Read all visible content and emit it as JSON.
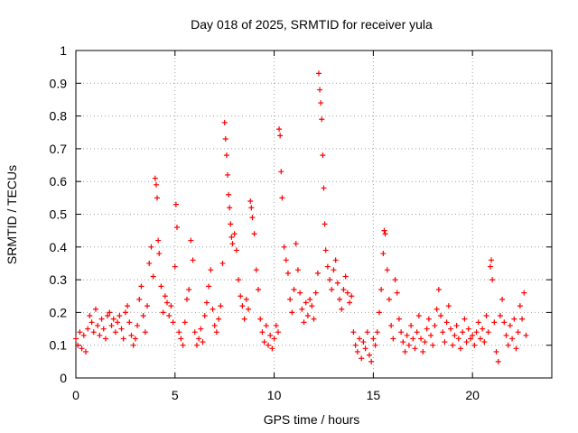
{
  "chart_data": {
    "type": "scatter",
    "title": "Day 018 of 2025, SRMTID for receiver yula",
    "xlabel": "GPS time / hours",
    "ylabel": "SRMTID / TECUs",
    "xlim": [
      0,
      24
    ],
    "ylim": [
      0,
      1
    ],
    "xticks": [
      0,
      5,
      10,
      15,
      20
    ],
    "xtick_labels": [
      "0",
      "5",
      "10",
      "15",
      "20"
    ],
    "yticks": [
      0,
      0.1,
      0.2,
      0.3,
      0.4,
      0.5,
      0.6,
      0.7,
      0.8,
      0.9,
      1
    ],
    "ytick_labels": [
      "0",
      "0.1",
      "0.2",
      "0.3",
      "0.4",
      "0.5",
      "0.6",
      "0.7",
      "0.8",
      "0.9",
      "1"
    ],
    "grid": true,
    "marker": "+",
    "marker_color": "#ff0000",
    "series": [
      {
        "name": "SRMTID",
        "points": [
          [
            0.0,
            0.12
          ],
          [
            0.1,
            0.1
          ],
          [
            0.2,
            0.14
          ],
          [
            0.3,
            0.09
          ],
          [
            0.4,
            0.13
          ],
          [
            0.5,
            0.08
          ],
          [
            0.6,
            0.15
          ],
          [
            0.7,
            0.19
          ],
          [
            0.8,
            0.17
          ],
          [
            0.9,
            0.14
          ],
          [
            1.0,
            0.21
          ],
          [
            1.1,
            0.16
          ],
          [
            1.2,
            0.13
          ],
          [
            1.3,
            0.18
          ],
          [
            1.4,
            0.15
          ],
          [
            1.5,
            0.12
          ],
          [
            1.6,
            0.19
          ],
          [
            1.7,
            0.2
          ],
          [
            1.8,
            0.16
          ],
          [
            1.9,
            0.18
          ],
          [
            2.0,
            0.14
          ],
          [
            2.1,
            0.17
          ],
          [
            2.2,
            0.19
          ],
          [
            2.3,
            0.15
          ],
          [
            2.4,
            0.12
          ],
          [
            2.5,
            0.2
          ],
          [
            2.6,
            0.22
          ],
          [
            2.7,
            0.17
          ],
          [
            2.8,
            0.13
          ],
          [
            2.9,
            0.1
          ],
          [
            3.0,
            0.12
          ],
          [
            3.1,
            0.16
          ],
          [
            3.2,
            0.24
          ],
          [
            3.3,
            0.28
          ],
          [
            3.4,
            0.19
          ],
          [
            3.5,
            0.14
          ],
          [
            3.6,
            0.22
          ],
          [
            3.7,
            0.35
          ],
          [
            3.8,
            0.4
          ],
          [
            3.9,
            0.31
          ],
          [
            4.0,
            0.61
          ],
          [
            4.05,
            0.59
          ],
          [
            4.1,
            0.55
          ],
          [
            4.15,
            0.42
          ],
          [
            4.2,
            0.38
          ],
          [
            4.3,
            0.28
          ],
          [
            4.4,
            0.2
          ],
          [
            4.5,
            0.25
          ],
          [
            4.6,
            0.23
          ],
          [
            4.7,
            0.19
          ],
          [
            4.8,
            0.22
          ],
          [
            4.9,
            0.17
          ],
          [
            5.0,
            0.34
          ],
          [
            5.05,
            0.53
          ],
          [
            5.1,
            0.46
          ],
          [
            5.2,
            0.14
          ],
          [
            5.3,
            0.12
          ],
          [
            5.4,
            0.1
          ],
          [
            5.5,
            0.17
          ],
          [
            5.6,
            0.24
          ],
          [
            5.7,
            0.27
          ],
          [
            5.8,
            0.42
          ],
          [
            5.9,
            0.36
          ],
          [
            6.0,
            0.14
          ],
          [
            6.1,
            0.1
          ],
          [
            6.2,
            0.12
          ],
          [
            6.3,
            0.15
          ],
          [
            6.4,
            0.11
          ],
          [
            6.5,
            0.19
          ],
          [
            6.6,
            0.23
          ],
          [
            6.7,
            0.28
          ],
          [
            6.8,
            0.33
          ],
          [
            6.9,
            0.21
          ],
          [
            7.0,
            0.16
          ],
          [
            7.1,
            0.14
          ],
          [
            7.2,
            0.18
          ],
          [
            7.3,
            0.22
          ],
          [
            7.4,
            0.35
          ],
          [
            7.5,
            0.78
          ],
          [
            7.55,
            0.73
          ],
          [
            7.6,
            0.68
          ],
          [
            7.65,
            0.62
          ],
          [
            7.7,
            0.56
          ],
          [
            7.75,
            0.52
          ],
          [
            7.8,
            0.47
          ],
          [
            7.85,
            0.43
          ],
          [
            7.9,
            0.41
          ],
          [
            8.0,
            0.44
          ],
          [
            8.1,
            0.39
          ],
          [
            8.2,
            0.3
          ],
          [
            8.3,
            0.25
          ],
          [
            8.4,
            0.22
          ],
          [
            8.5,
            0.18
          ],
          [
            8.6,
            0.24
          ],
          [
            8.7,
            0.21
          ],
          [
            8.8,
            0.54
          ],
          [
            8.85,
            0.52
          ],
          [
            8.9,
            0.49
          ],
          [
            9.0,
            0.44
          ],
          [
            9.1,
            0.33
          ],
          [
            9.2,
            0.27
          ],
          [
            9.3,
            0.18
          ],
          [
            9.4,
            0.14
          ],
          [
            9.5,
            0.11
          ],
          [
            9.6,
            0.16
          ],
          [
            9.7,
            0.1
          ],
          [
            9.8,
            0.13
          ],
          [
            9.9,
            0.09
          ],
          [
            10.0,
            0.12
          ],
          [
            10.1,
            0.16
          ],
          [
            10.2,
            0.14
          ],
          [
            10.25,
            0.76
          ],
          [
            10.3,
            0.74
          ],
          [
            10.35,
            0.63
          ],
          [
            10.4,
            0.55
          ],
          [
            10.5,
            0.4
          ],
          [
            10.6,
            0.36
          ],
          [
            10.7,
            0.32
          ],
          [
            10.8,
            0.24
          ],
          [
            10.9,
            0.2
          ],
          [
            11.0,
            0.27
          ],
          [
            11.1,
            0.41
          ],
          [
            11.2,
            0.33
          ],
          [
            11.3,
            0.26
          ],
          [
            11.4,
            0.21
          ],
          [
            11.5,
            0.17
          ],
          [
            11.6,
            0.23
          ],
          [
            11.7,
            0.19
          ],
          [
            11.8,
            0.24
          ],
          [
            11.9,
            0.22
          ],
          [
            12.0,
            0.18
          ],
          [
            12.1,
            0.26
          ],
          [
            12.2,
            0.32
          ],
          [
            12.25,
            0.93
          ],
          [
            12.3,
            0.88
          ],
          [
            12.35,
            0.84
          ],
          [
            12.4,
            0.79
          ],
          [
            12.45,
            0.68
          ],
          [
            12.5,
            0.58
          ],
          [
            12.55,
            0.47
          ],
          [
            12.6,
            0.39
          ],
          [
            12.7,
            0.34
          ],
          [
            12.8,
            0.3
          ],
          [
            12.9,
            0.27
          ],
          [
            13.0,
            0.33
          ],
          [
            13.1,
            0.36
          ],
          [
            13.2,
            0.29
          ],
          [
            13.3,
            0.24
          ],
          [
            13.4,
            0.21
          ],
          [
            13.5,
            0.27
          ],
          [
            13.6,
            0.31
          ],
          [
            13.7,
            0.26
          ],
          [
            13.8,
            0.23
          ],
          [
            13.9,
            0.25
          ],
          [
            14.0,
            0.14
          ],
          [
            14.1,
            0.1
          ],
          [
            14.2,
            0.08
          ],
          [
            14.3,
            0.12
          ],
          [
            14.4,
            0.06
          ],
          [
            14.5,
            0.11
          ],
          [
            14.6,
            0.09
          ],
          [
            14.7,
            0.14
          ],
          [
            14.8,
            0.07
          ],
          [
            14.9,
            0.05
          ],
          [
            15.0,
            0.12
          ],
          [
            15.1,
            0.1
          ],
          [
            15.2,
            0.14
          ],
          [
            15.3,
            0.2
          ],
          [
            15.4,
            0.27
          ],
          [
            15.5,
            0.38
          ],
          [
            15.55,
            0.45
          ],
          [
            15.6,
            0.44
          ],
          [
            15.7,
            0.33
          ],
          [
            15.8,
            0.24
          ],
          [
            15.9,
            0.16
          ],
          [
            16.0,
            0.12
          ],
          [
            16.1,
            0.3
          ],
          [
            16.2,
            0.26
          ],
          [
            16.3,
            0.18
          ],
          [
            16.4,
            0.14
          ],
          [
            16.5,
            0.11
          ],
          [
            16.6,
            0.08
          ],
          [
            16.7,
            0.13
          ],
          [
            16.8,
            0.1
          ],
          [
            16.9,
            0.16
          ],
          [
            17.0,
            0.12
          ],
          [
            17.1,
            0.09
          ],
          [
            17.2,
            0.14
          ],
          [
            17.3,
            0.19
          ],
          [
            17.4,
            0.12
          ],
          [
            17.5,
            0.08
          ],
          [
            17.6,
            0.11
          ],
          [
            17.7,
            0.15
          ],
          [
            17.8,
            0.18
          ],
          [
            17.9,
            0.13
          ],
          [
            18.0,
            0.1
          ],
          [
            18.1,
            0.16
          ],
          [
            18.2,
            0.21
          ],
          [
            18.3,
            0.27
          ],
          [
            18.4,
            0.19
          ],
          [
            18.5,
            0.14
          ],
          [
            18.6,
            0.11
          ],
          [
            18.7,
            0.17
          ],
          [
            18.8,
            0.22
          ],
          [
            18.9,
            0.15
          ],
          [
            19.0,
            0.1
          ],
          [
            19.1,
            0.13
          ],
          [
            19.2,
            0.16
          ],
          [
            19.3,
            0.12
          ],
          [
            19.4,
            0.09
          ],
          [
            19.5,
            0.14
          ],
          [
            19.6,
            0.18
          ],
          [
            19.7,
            0.11
          ],
          [
            19.8,
            0.15
          ],
          [
            19.9,
            0.12
          ],
          [
            20.0,
            0.13
          ],
          [
            20.1,
            0.1
          ],
          [
            20.2,
            0.14
          ],
          [
            20.3,
            0.17
          ],
          [
            20.4,
            0.12
          ],
          [
            20.5,
            0.15
          ],
          [
            20.6,
            0.11
          ],
          [
            20.7,
            0.19
          ],
          [
            20.8,
            0.14
          ],
          [
            20.9,
            0.34
          ],
          [
            20.95,
            0.36
          ],
          [
            21.0,
            0.3
          ],
          [
            21.1,
            0.17
          ],
          [
            21.2,
            0.08
          ],
          [
            21.3,
            0.05
          ],
          [
            21.4,
            0.19
          ],
          [
            21.5,
            0.24
          ],
          [
            21.6,
            0.17
          ],
          [
            21.7,
            0.13
          ],
          [
            21.8,
            0.1
          ],
          [
            21.9,
            0.16
          ],
          [
            22.0,
            0.12
          ],
          [
            22.1,
            0.18
          ],
          [
            22.2,
            0.09
          ],
          [
            22.3,
            0.14
          ],
          [
            22.4,
            0.22
          ],
          [
            22.5,
            0.18
          ],
          [
            22.6,
            0.26
          ],
          [
            22.7,
            0.13
          ]
        ]
      }
    ]
  }
}
